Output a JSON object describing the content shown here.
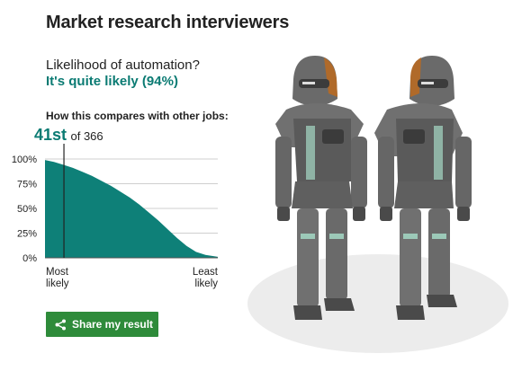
{
  "title": "Market research interviewers",
  "question": "Likelihood of automation?",
  "answer": "It's quite likely (94%)",
  "compare_heading": "How this compares with other jobs:",
  "rank": {
    "position": "41st",
    "total_text": "of 366"
  },
  "x_labels": {
    "left": [
      "Most",
      "likely"
    ],
    "right": [
      "Least",
      "likely"
    ]
  },
  "share_button": {
    "label": "Share my result",
    "icon": "share-icon"
  },
  "illustration": {
    "icon": "robot-figures"
  },
  "colors": {
    "accent": "#0b7b73",
    "button": "#2e8b3a",
    "fill": "#0e8078"
  },
  "chart_data": {
    "type": "area",
    "y_ticks": [
      "100%",
      "75%",
      "50%",
      "25%",
      "0%"
    ],
    "ylim": [
      0,
      100
    ],
    "x": [
      1,
      20,
      41,
      60,
      80,
      100,
      120,
      140,
      160,
      180,
      200,
      220,
      240,
      260,
      280,
      300,
      320,
      340,
      366
    ],
    "values": [
      99,
      97,
      94,
      91,
      87,
      83,
      78,
      73,
      67,
      61,
      54,
      46,
      38,
      29,
      20,
      12,
      6,
      3,
      1
    ],
    "marker_rank": 41,
    "total": 366,
    "grid": true
  }
}
